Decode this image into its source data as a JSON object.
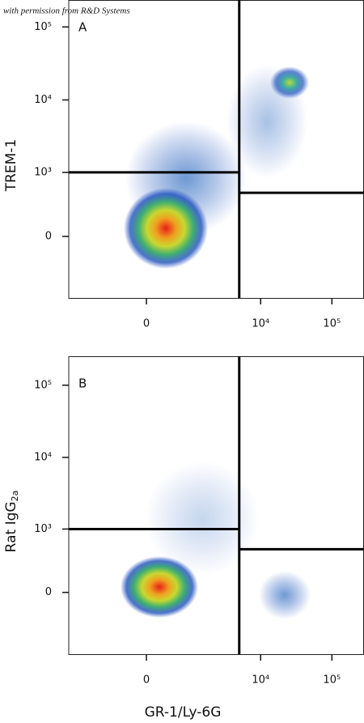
{
  "credit": "with permission from R&D Systems",
  "chart_data": [
    {
      "type": "density",
      "panel_label": "A",
      "y_label": "TREM-1",
      "xlim": [
        -3050,
        282000
      ],
      "xticks": [
        0,
        {
          "value": 10000,
          "label": "10⁴"
        },
        {
          "value": 100000,
          "label": "10⁵"
        }
      ],
      "ylim": [
        -920,
        234000
      ],
      "yticks": [
        0,
        {
          "value": 1000,
          "label": "10³"
        },
        {
          "value": 10000,
          "label": "10⁴"
        },
        {
          "value": 100000,
          "label": "10⁵"
        }
      ],
      "gate_x": 5000,
      "gate_y_left": 1000,
      "gate_y_right": 500
    },
    {
      "type": "density",
      "panel_label": "B",
      "y_label": "Rat IgG",
      "y_label_subscript": "2a",
      "x_label": "GR-1/Ly-6G",
      "xlim": [
        -3050,
        282000
      ],
      "xticks": [
        0,
        {
          "value": 10000,
          "label": "10⁴"
        },
        {
          "value": 100000,
          "label": "10⁵"
        }
      ],
      "ylim": [
        -950,
        252000
      ],
      "yticks": [
        0,
        {
          "value": 1000,
          "label": "10³"
        },
        {
          "value": 10000,
          "label": "10⁴"
        },
        {
          "value": 100000,
          "label": "10⁵"
        }
      ],
      "gate_x": 5000,
      "gate_y_left": 1000,
      "gate_y_right": 500
    }
  ]
}
